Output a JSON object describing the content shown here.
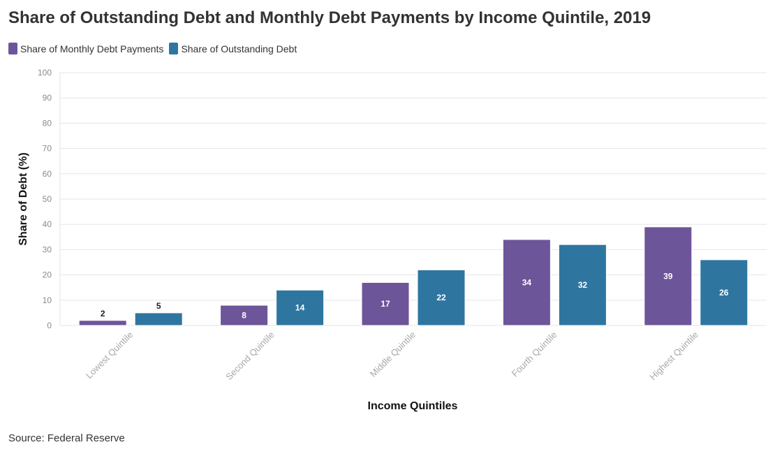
{
  "title": "Share of Outstanding Debt and Monthly Debt Payments by Income Quintile, 2019",
  "source": "Source: Federal Reserve",
  "colors": {
    "payments": "#6d5599",
    "outstanding": "#2e76a0"
  },
  "chart_data": {
    "type": "bar",
    "title": "Share of Outstanding Debt and Monthly Debt Payments by Income Quintile, 2019",
    "xlabel": "Income Quintiles",
    "ylabel": "Share of Debt (%)",
    "ylim": [
      0,
      100
    ],
    "yticks": [
      0,
      10,
      20,
      30,
      40,
      50,
      60,
      70,
      80,
      90,
      100
    ],
    "grid": true,
    "legend": "top-left",
    "categories": [
      "Lowest Quintile",
      "Second Quintile",
      "Middle Quintile",
      "Fourth Quintile",
      "Highest Quintile"
    ],
    "series": [
      {
        "name": "Share of Monthly Debt Payments",
        "values": [
          2,
          8,
          17,
          34,
          39
        ]
      },
      {
        "name": "Share of Outstanding Debt",
        "values": [
          5,
          14,
          22,
          32,
          26
        ]
      }
    ]
  }
}
